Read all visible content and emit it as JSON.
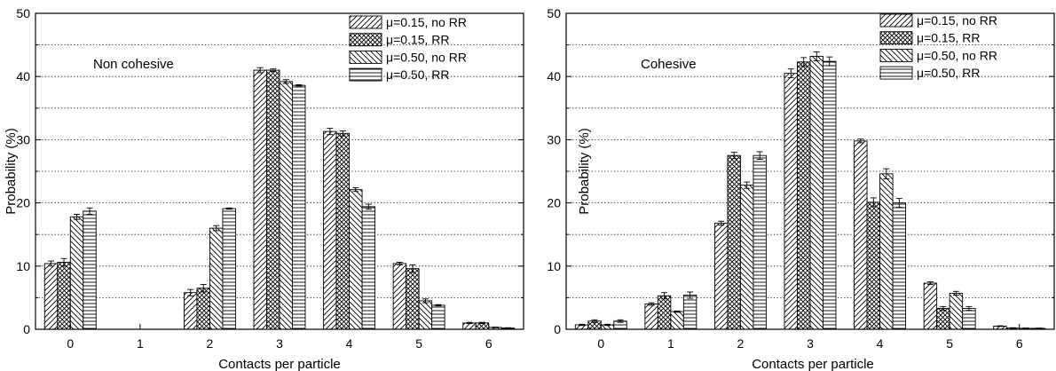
{
  "chart_data": [
    {
      "type": "bar",
      "annotation": "Non cohesive",
      "xlabel": "Contacts per particle",
      "ylabel": "Probability (%)",
      "ylim": [
        0,
        50
      ],
      "yticks": [
        0,
        10,
        20,
        30,
        40,
        50
      ],
      "grid": "dotted horizontal lines at every 5%",
      "legend_position": "top-right",
      "categories": [
        "0",
        "1",
        "2",
        "3",
        "4",
        "5",
        "6"
      ],
      "series": [
        {
          "name": "μ=0.15,  no RR",
          "pattern": "diag-fwd",
          "values": [
            10.4,
            0,
            5.8,
            41.0,
            31.3,
            10.4,
            1.0
          ],
          "errors": [
            0.4,
            0,
            0.5,
            0.4,
            0.5,
            0.2,
            0.1
          ]
        },
        {
          "name": "μ=0.15,  RR",
          "pattern": "crosshatch",
          "values": [
            10.6,
            0,
            6.5,
            41.0,
            31.0,
            9.6,
            1.0
          ],
          "errors": [
            0.6,
            0,
            0.6,
            0.2,
            0.4,
            0.6,
            0.1
          ]
        },
        {
          "name": "μ=0.50,  no RR",
          "pattern": "diag-back",
          "values": [
            17.8,
            0,
            16.0,
            39.2,
            22.1,
            4.5,
            0.3
          ],
          "errors": [
            0.4,
            0,
            0.4,
            0.3,
            0.3,
            0.3,
            0.05
          ]
        },
        {
          "name": "μ=0.50,  RR",
          "pattern": "horizontal",
          "values": [
            18.7,
            0,
            19.1,
            38.6,
            19.4,
            3.8,
            0.2
          ],
          "errors": [
            0.5,
            0,
            0.1,
            0.1,
            0.4,
            0.1,
            0.05
          ]
        }
      ]
    },
    {
      "type": "bar",
      "annotation": "Cohesive",
      "xlabel": "Contacts per particle",
      "ylabel": "Probability (%)",
      "ylim": [
        0,
        50
      ],
      "yticks": [
        0,
        10,
        20,
        30,
        40,
        50
      ],
      "grid": "dotted horizontal lines at every 5%",
      "legend_position": "top-right",
      "categories": [
        "0",
        "1",
        "2",
        "3",
        "4",
        "5",
        "6"
      ],
      "series": [
        {
          "name": "μ=0.15,  no RR",
          "pattern": "diag-fwd",
          "values": [
            0.7,
            4.0,
            16.8,
            40.5,
            29.8,
            7.3,
            0.5
          ],
          "errors": [
            0.1,
            0.2,
            0.3,
            0.7,
            0.3,
            0.2,
            0.05
          ]
        },
        {
          "name": "μ=0.15,  RR",
          "pattern": "crosshatch",
          "values": [
            1.3,
            5.3,
            27.5,
            42.3,
            20.1,
            3.3,
            0.2
          ],
          "errors": [
            0.2,
            0.5,
            0.5,
            0.7,
            0.7,
            0.3,
            0.05
          ]
        },
        {
          "name": "μ=0.50,  no RR",
          "pattern": "diag-back",
          "values": [
            0.7,
            2.8,
            22.8,
            43.2,
            24.6,
            5.7,
            0.15
          ],
          "errors": [
            0.1,
            0.1,
            0.5,
            0.7,
            0.8,
            0.3,
            0.05
          ]
        },
        {
          "name": "μ=0.50,  RR",
          "pattern": "horizontal",
          "values": [
            1.3,
            5.4,
            27.5,
            42.4,
            20.0,
            3.3,
            0.15
          ],
          "errors": [
            0.2,
            0.5,
            0.6,
            0.7,
            0.7,
            0.3,
            0.05
          ]
        }
      ]
    }
  ]
}
